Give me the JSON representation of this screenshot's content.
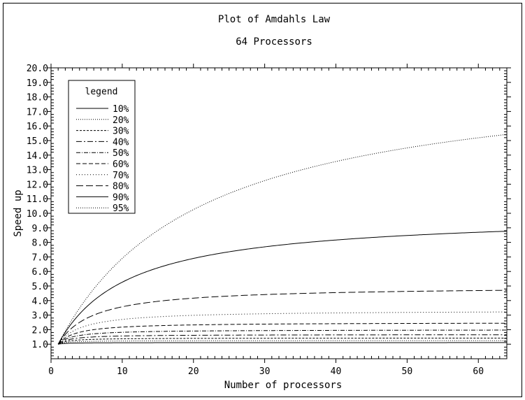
{
  "chart_data": {
    "type": "line",
    "title": "Plot of Amdahls Law",
    "subtitle": "64 Processors",
    "xlabel": "Number of processors",
    "ylabel": "Speed up",
    "xlim": [
      0,
      64
    ],
    "ylim": [
      0,
      20
    ],
    "x_ticks": [
      0,
      10,
      20,
      30,
      40,
      50,
      60
    ],
    "y_ticks": [
      1.0,
      2.0,
      3.0,
      4.0,
      5.0,
      6.0,
      7.0,
      8.0,
      9.0,
      10.0,
      11.0,
      12.0,
      13.0,
      14.0,
      15.0,
      16.0,
      17.0,
      18.0,
      19.0,
      20.0
    ],
    "grid": false,
    "legend": {
      "title": "legend",
      "placement": "top-left"
    },
    "x": [
      1,
      2,
      4,
      8,
      16,
      32,
      64
    ],
    "series": [
      {
        "name": "10%",
        "dash": "none",
        "values": [
          1.0,
          1.05,
          1.08,
          1.1,
          1.1,
          1.11,
          1.11
        ]
      },
      {
        "name": "20%",
        "dash": "1,2",
        "values": [
          1.0,
          1.11,
          1.18,
          1.21,
          1.23,
          1.24,
          1.25
        ]
      },
      {
        "name": "30%",
        "dash": "3,2",
        "values": [
          1.0,
          1.18,
          1.29,
          1.36,
          1.39,
          1.41,
          1.42
        ]
      },
      {
        "name": "40%",
        "dash": "8,3,2,3",
        "values": [
          1.0,
          1.25,
          1.43,
          1.54,
          1.6,
          1.63,
          1.65
        ]
      },
      {
        "name": "50%",
        "dash": "6,2,1,2",
        "values": [
          1.0,
          1.33,
          1.6,
          1.78,
          1.88,
          1.94,
          1.97
        ]
      },
      {
        "name": "60%",
        "dash": "6,3",
        "values": [
          1.0,
          1.43,
          1.82,
          2.11,
          2.29,
          2.39,
          2.44
        ]
      },
      {
        "name": "70%",
        "dash": "1,3",
        "values": [
          1.0,
          1.54,
          2.11,
          2.58,
          2.91,
          3.11,
          3.22
        ]
      },
      {
        "name": "80%",
        "dash": "10,4",
        "values": [
          1.0,
          1.67,
          2.5,
          3.33,
          4.0,
          4.44,
          4.71
        ]
      },
      {
        "name": "90%",
        "dash": "none",
        "values": [
          1.0,
          1.82,
          3.08,
          4.71,
          6.4,
          7.8,
          8.77
        ]
      },
      {
        "name": "95%",
        "dash": "1,2",
        "values": [
          1.0,
          1.9,
          3.48,
          5.93,
          9.14,
          12.55,
          15.42
        ]
      }
    ]
  }
}
